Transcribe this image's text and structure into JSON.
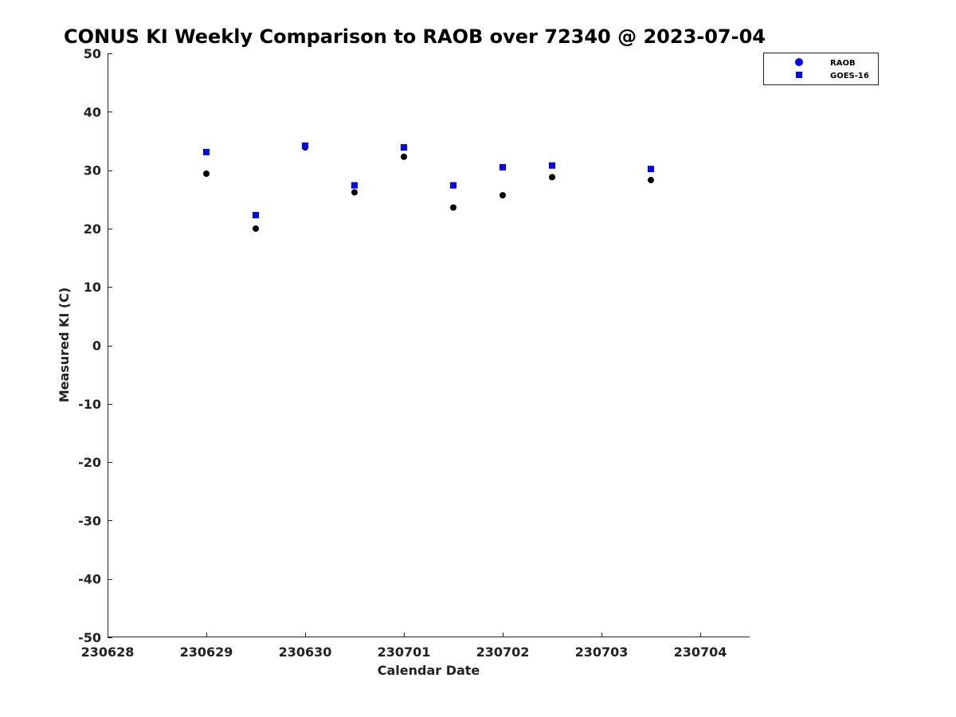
{
  "chart_data": {
    "type": "scatter",
    "title": "CONUS KI Weekly Comparison to RAOB over 72340 @ 2023-07-04",
    "xlabel": "Calendar Date",
    "ylabel": "Measured KI (C)",
    "x_tick_labels": [
      "230628",
      "230629",
      "230630",
      "230701",
      "230702",
      "230703",
      "230704"
    ],
    "x_tick_values": [
      0,
      1,
      2,
      3,
      4,
      5,
      6
    ],
    "xlim": [
      0,
      6.5
    ],
    "ylim": [
      -50,
      50
    ],
    "y_ticks": [
      50,
      40,
      30,
      20,
      10,
      0,
      -10,
      -20,
      -30,
      -40,
      -50
    ],
    "grid": false,
    "legend_position": "top-right",
    "series": [
      {
        "name": "RAOB",
        "marker": "circle",
        "color": "#000000",
        "legend_color": "#0000ff",
        "points": [
          {
            "x": 1.0,
            "y": 29.4
          },
          {
            "x": 1.5,
            "y": 20.0
          },
          {
            "x": 2.0,
            "y": 33.9
          },
          {
            "x": 2.5,
            "y": 26.2
          },
          {
            "x": 3.0,
            "y": 32.3
          },
          {
            "x": 3.5,
            "y": 23.6
          },
          {
            "x": 4.0,
            "y": 25.7
          },
          {
            "x": 4.5,
            "y": 28.8
          },
          {
            "x": 5.5,
            "y": 28.3
          }
        ]
      },
      {
        "name": "GOES-16",
        "marker": "square",
        "color": "#0000ff",
        "legend_color": "#0000ff",
        "points": [
          {
            "x": 1.0,
            "y": 33.1
          },
          {
            "x": 1.5,
            "y": 22.3
          },
          {
            "x": 2.0,
            "y": 34.2
          },
          {
            "x": 2.5,
            "y": 27.4
          },
          {
            "x": 3.0,
            "y": 33.9
          },
          {
            "x": 3.5,
            "y": 27.4
          },
          {
            "x": 4.0,
            "y": 30.5
          },
          {
            "x": 4.5,
            "y": 30.8
          },
          {
            "x": 5.5,
            "y": 30.2
          }
        ]
      }
    ]
  }
}
